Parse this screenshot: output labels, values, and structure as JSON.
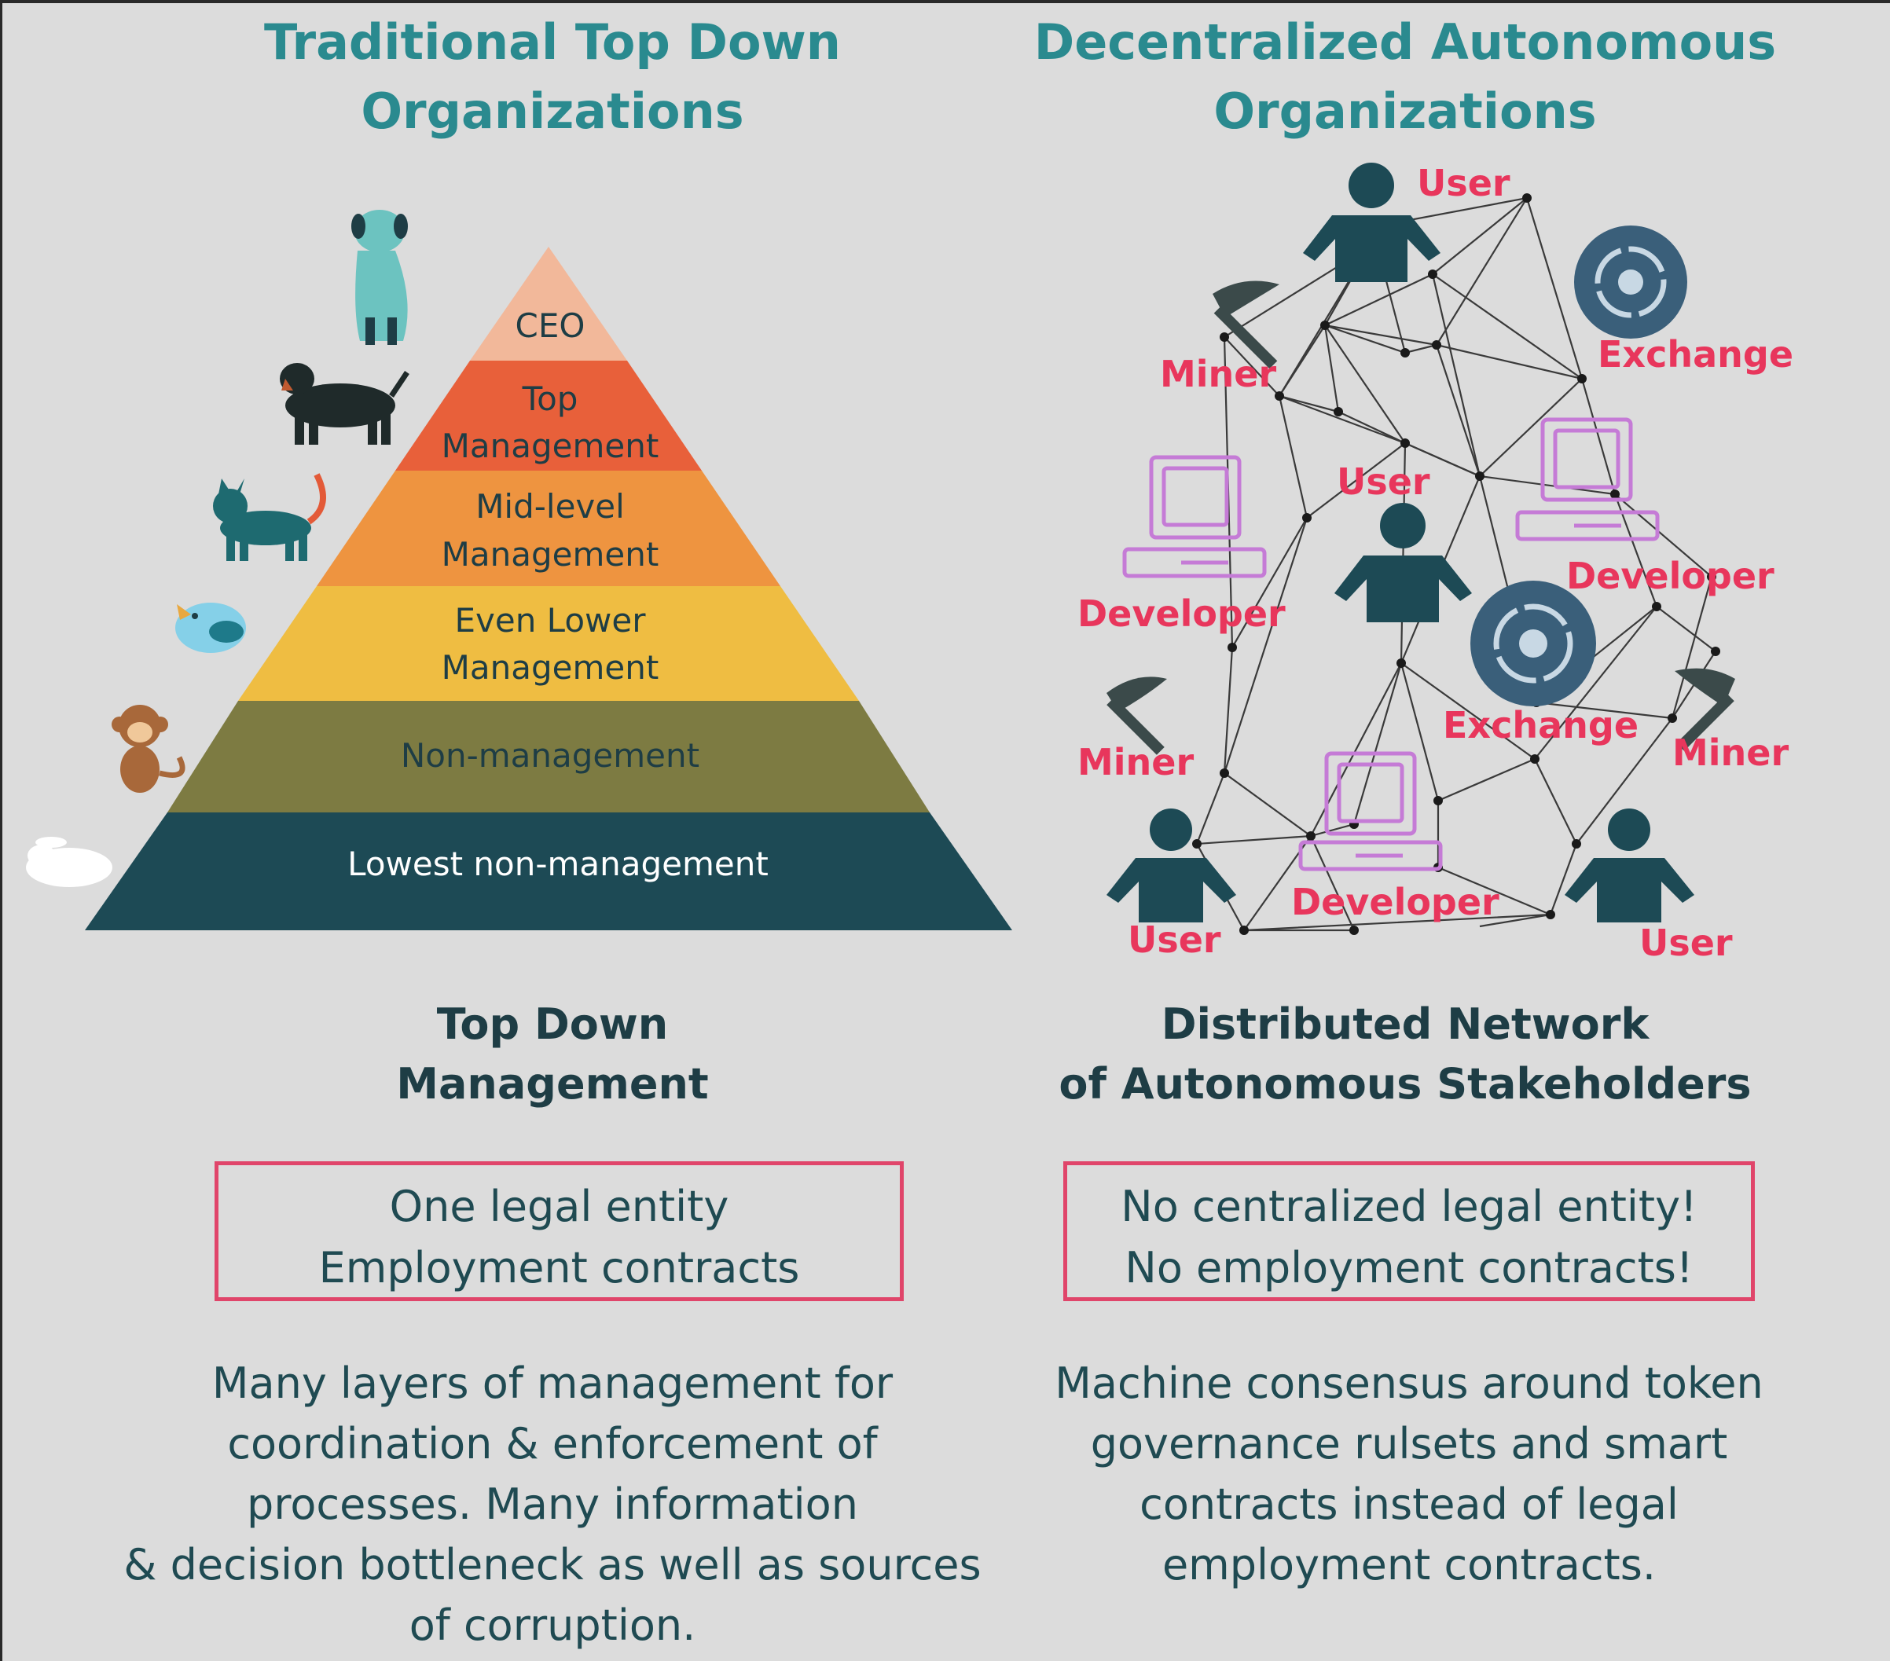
{
  "left": {
    "heading_line1": "Traditional Top Down",
    "heading_line2": "Organizations",
    "pyramid": [
      {
        "line1": "CEO",
        "line2": "",
        "color": "#f2b89a"
      },
      {
        "line1": "Top",
        "line2": "Management",
        "color": "#e8603a"
      },
      {
        "line1": "Mid-level",
        "line2": "Management",
        "color": "#ee9440"
      },
      {
        "line1": "Even Lower",
        "line2": "Management",
        "color": "#efbd42"
      },
      {
        "line1": "Non-management",
        "line2": "",
        "color": "#7d7b42"
      },
      {
        "line1": "Lowest non-management",
        "line2": "",
        "color": "#1d4a55"
      }
    ],
    "animal_icons": [
      "dog-icon",
      "rottweiler-icon",
      "cat-icon",
      "bird-icon",
      "monkey-icon",
      "rabbit-icon"
    ],
    "subtitle_line1": "Top Down",
    "subtitle_line2": "Management",
    "box_line1": "One legal entity",
    "box_line2": "Employment contracts",
    "desc_lines": [
      "Many layers of management for",
      "coordination & enforcement of",
      "processes. Many information",
      "& decision bottleneck as well as sources",
      "of corruption."
    ]
  },
  "right": {
    "heading_line1": "Decentralized Autonomous",
    "heading_line2": "Organizations",
    "network_labels": {
      "user": "User",
      "miner": "Miner",
      "exchange": "Exchange",
      "developer": "Developer"
    },
    "subtitle_line1": "Distributed Network",
    "subtitle_line2": "of Autonomous Stakeholders",
    "box_line1": "No centralized legal entity!",
    "box_line2": "No employment contracts!",
    "desc_lines": [
      "Machine consensus around token",
      "governance rulsets and smart",
      "contracts instead of legal",
      "employment contracts."
    ]
  },
  "colors": {
    "background": "#dcdcdc",
    "heading": "#2a8a8f",
    "dark_text": "#1e3d45",
    "accent_red": "#e8365c",
    "person": "#1d4a55",
    "developer_pc": "#c57bd6",
    "exchange": "#3a5f7a",
    "miner": "#3b4a4a"
  }
}
